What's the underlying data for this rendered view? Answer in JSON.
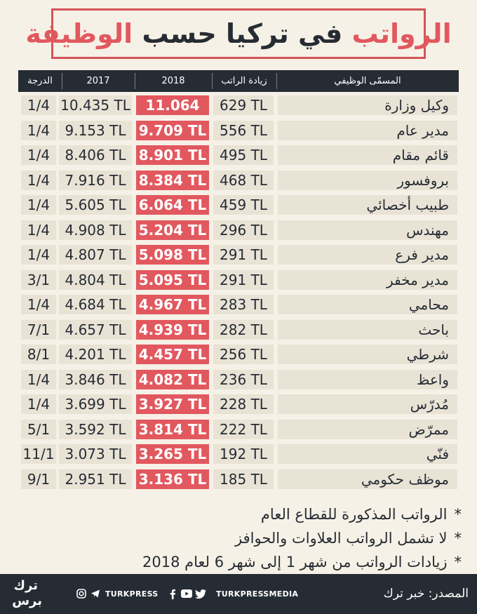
{
  "title": {
    "part1": "الرواتب",
    "part2": "في تركيا حسب",
    "part3": "الوظيفة"
  },
  "columns": {
    "title": "المسمّى الوظيفي",
    "raise": "زيادة الراتب",
    "y2018": "2018",
    "y2017": "2017",
    "grade": "الدرجة"
  },
  "chart_data": {
    "type": "table",
    "columns": [
      "المسمّى الوظيفي",
      "زيادة الراتب",
      "2018",
      "2017",
      "الدرجة"
    ],
    "rows": [
      {
        "title": "وكيل وزارة",
        "raise": "629 TL",
        "y2018": "11.064 TL",
        "y2017": "10.435 TL",
        "grade": "1/4"
      },
      {
        "title": "مدير عام",
        "raise": "556 TL",
        "y2018": "9.709 TL",
        "y2017": "9.153 TL",
        "grade": "1/4"
      },
      {
        "title": "قائم مقام",
        "raise": "495 TL",
        "y2018": "8.901 TL",
        "y2017": "8.406 TL",
        "grade": "1/4"
      },
      {
        "title": "بروفسور",
        "raise": "468 TL",
        "y2018": "8.384 TL",
        "y2017": "7.916 TL",
        "grade": "1/4"
      },
      {
        "title": "طبيب أخصائي",
        "raise": "459 TL",
        "y2018": "6.064 TL",
        "y2017": "5.605 TL",
        "grade": "1/4"
      },
      {
        "title": "مهندس",
        "raise": "296 TL",
        "y2018": "5.204 TL",
        "y2017": "4.908 TL",
        "grade": "1/4"
      },
      {
        "title": "مدير فرع",
        "raise": "291 TL",
        "y2018": "5.098 TL",
        "y2017": "4.807 TL",
        "grade": "1/4"
      },
      {
        "title": "مدير مخفر",
        "raise": "291 TL",
        "y2018": "5.095 TL",
        "y2017": "4.804 TL",
        "grade": "3/1"
      },
      {
        "title": "محامي",
        "raise": "283 TL",
        "y2018": "4.967 TL",
        "y2017": "4.684 TL",
        "grade": "1/4"
      },
      {
        "title": "باحث",
        "raise": "282 TL",
        "y2018": "4.939 TL",
        "y2017": "4.657 TL",
        "grade": "7/1"
      },
      {
        "title": "شرطي",
        "raise": "256 TL",
        "y2018": "4.457 TL",
        "y2017": "4.201 TL",
        "grade": "8/1"
      },
      {
        "title": "واعظ",
        "raise": "236 TL",
        "y2018": "4.082 TL",
        "y2017": "3.846 TL",
        "grade": "1/4"
      },
      {
        "title": "مُدرّس",
        "raise": "228 TL",
        "y2018": "3.927 TL",
        "y2017": "3.699 TL",
        "grade": "1/4"
      },
      {
        "title": "ممرّض",
        "raise": "222 TL",
        "y2018": "3.814 TL",
        "y2017": "3.592 TL",
        "grade": "5/1"
      },
      {
        "title": "فنّي",
        "raise": "192 TL",
        "y2018": "3.265 TL",
        "y2017": "3.073 TL",
        "grade": "11/1"
      },
      {
        "title": "موظف حكومي",
        "raise": "185 TL",
        "y2018": "3.136 TL",
        "y2017": "2.951 TL",
        "grade": "9/1"
      }
    ]
  },
  "notes": [
    "الرواتب المذكورة للقطاع العام",
    "لا تشمل الرواتب العلاوات والحوافز",
    "زيادات الرواتب من شهر 1 إلى شهر 6 لعام 2018"
  ],
  "footer": {
    "source": "المصدر: خبر ترك",
    "handle_media": "TURKPRESSMEDIA",
    "handle_press": "TURKPRESS",
    "logo_line1": "ترك",
    "logo_line2": "برس",
    "icons_right": [
      "twitter-icon",
      "youtube-icon",
      "facebook-icon"
    ],
    "icons_left": [
      "telegram-icon",
      "instagram-icon"
    ]
  },
  "colors": {
    "accent": "#e2585f",
    "dark": "#262c34",
    "cell": "#e9e3d6",
    "background": "#f6f1e6"
  }
}
